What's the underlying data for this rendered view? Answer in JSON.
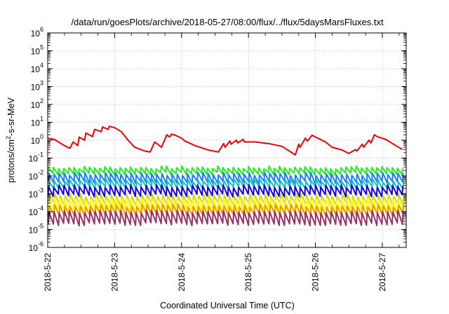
{
  "chart_data": {
    "type": "line",
    "title": "/data/run/goesPlots/archive/2018-05-27/08:00/flux/../flux/5daysMarsFluxes.txt",
    "xlabel": "Coordinated Universal Time (UTC)",
    "ylabel": "protons/cm²-s-sr-MeV",
    "ylabel_parts": {
      "pre": "protons/cm",
      "sup": "2",
      "post": "-s-sr-MeV"
    },
    "x_tick_labels": [
      "2018-5-22",
      "2018-5-23",
      "2018-5-24",
      "2018-5-25",
      "2018-5-26",
      "2018-5-27"
    ],
    "xlim_days": [
      0,
      5.35
    ],
    "y_scale": "log",
    "ylim": [
      1e-06,
      1000000
    ],
    "y_tick_labels": [
      {
        "base": "10",
        "exp": "-6"
      },
      {
        "base": "10",
        "exp": "-5"
      },
      {
        "base": "10",
        "exp": "-4"
      },
      {
        "base": "10",
        "exp": "-3"
      },
      {
        "base": "10",
        "exp": "-2"
      },
      {
        "base": "10",
        "exp": "-1"
      },
      {
        "base": "10",
        "exp": "0"
      },
      {
        "base": "10",
        "exp": "1"
      },
      {
        "base": "10",
        "exp": "2"
      },
      {
        "base": "10",
        "exp": "3"
      },
      {
        "base": "10",
        "exp": "4"
      },
      {
        "base": "10",
        "exp": "5"
      },
      {
        "base": "10",
        "exp": "6"
      }
    ],
    "grid": true,
    "series": [
      {
        "color": "#ee0000",
        "x": [
          0,
          0.1,
          0.25,
          0.33,
          0.38,
          0.45,
          0.47,
          0.55,
          0.57,
          0.67,
          0.7,
          0.8,
          0.82,
          0.9,
          0.92,
          1.0,
          1.1,
          1.2,
          1.3,
          1.45,
          1.53,
          1.6,
          1.7,
          1.78,
          1.82,
          1.85,
          1.92,
          2.0,
          2.05,
          2.2,
          2.4,
          2.55,
          2.63,
          2.65,
          2.72,
          2.74,
          2.82,
          2.84,
          2.92,
          2.94,
          3.1,
          3.3,
          3.5,
          3.7,
          3.75,
          3.77,
          3.85,
          3.88,
          3.95,
          4.0,
          4.15,
          4.25,
          4.4,
          4.5,
          4.6,
          4.62,
          4.7,
          4.72,
          4.8,
          4.83,
          4.88,
          4.92,
          5.05,
          5.2,
          5.3
        ],
        "y": [
          1.3,
          1.1,
          0.5,
          0.35,
          0.8,
          0.5,
          1.5,
          1.0,
          2.5,
          1.6,
          4.0,
          3.0,
          5.5,
          4.0,
          6.0,
          5.0,
          3.0,
          1.0,
          0.4,
          0.25,
          0.22,
          0.8,
          0.4,
          2.0,
          1.5,
          2.2,
          1.8,
          1.3,
          0.9,
          0.5,
          0.28,
          0.22,
          0.65,
          0.4,
          0.9,
          0.6,
          1.0,
          0.7,
          1.1,
          0.8,
          0.8,
          0.65,
          0.45,
          0.15,
          0.6,
          0.4,
          1.3,
          0.9,
          1.9,
          1.5,
          0.8,
          0.4,
          0.28,
          0.18,
          0.3,
          0.25,
          0.6,
          0.4,
          1.0,
          0.7,
          2.0,
          1.6,
          1.1,
          0.5,
          0.3
        ]
      },
      {
        "color": "#22ee22",
        "level": 0.02,
        "amp": 2.2,
        "phase": 0.0
      },
      {
        "color": "#1a7fff",
        "level": 0.0075,
        "amp": 3.0,
        "phase": 0.01
      },
      {
        "color": "#13c3c0",
        "level": 0.0035,
        "amp": 2.5,
        "phase": 0.015
      },
      {
        "color": "#1100ee",
        "level": 0.0015,
        "amp": 3.2,
        "phase": 0.005
      },
      {
        "color": "#d8d800",
        "level": 0.00045,
        "amp": 3.5,
        "phase": 0.02
      },
      {
        "color": "#ffff00",
        "level": 0.00022,
        "amp": 4.0,
        "phase": 0.012
      },
      {
        "color": "#ee9900",
        "level": 0.00012,
        "amp": 3.5,
        "phase": 0.018
      },
      {
        "color": "#993366",
        "level": 4.5e-05,
        "amp": 5.0,
        "phase": 0.008
      }
    ],
    "sawtooth_period_days": 0.0767
  }
}
